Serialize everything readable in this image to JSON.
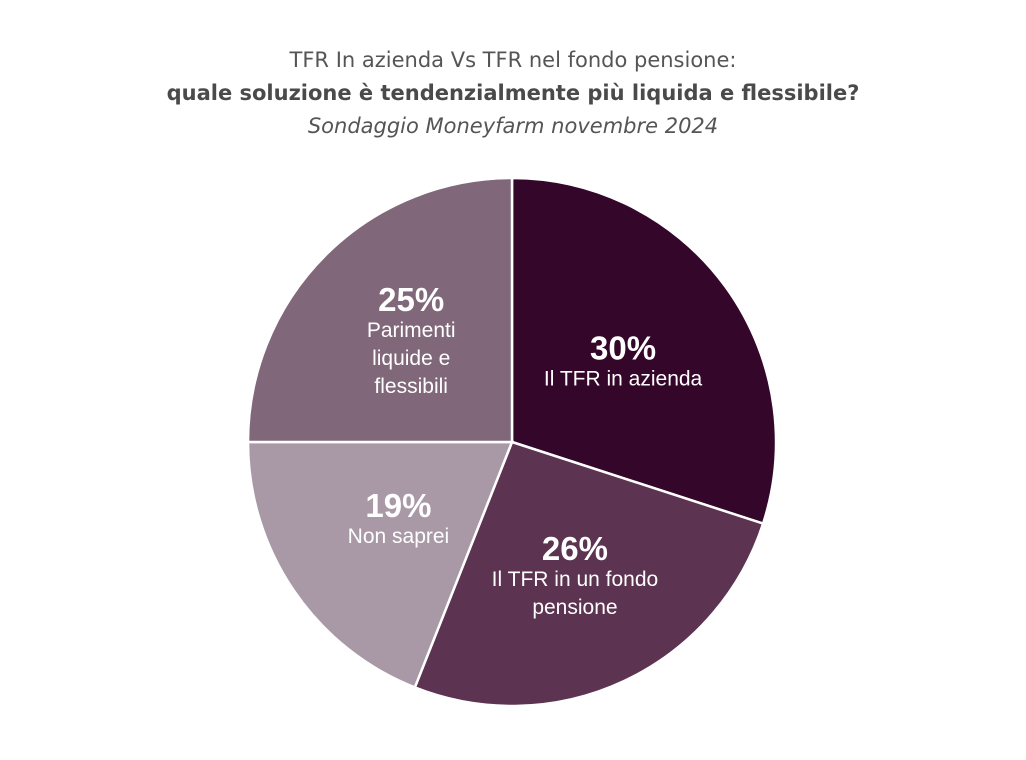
{
  "chart_data": {
    "type": "pie",
    "title": "TFR In azienda Vs TFR nel fondo pensione:",
    "subtitle": "quale soluzione è tendenzialmente più liquida e flessibile?",
    "caption": "Sondaggio Moneyfarm novembre 2024",
    "slices": [
      {
        "value_label": "30%",
        "value": 30,
        "label_lines": [
          "Il TFR in azienda"
        ],
        "color": "#33062A"
      },
      {
        "value_label": "26%",
        "value": 26,
        "label_lines": [
          "Il TFR in un fondo",
          "pensione"
        ],
        "color": "#5C3350"
      },
      {
        "value_label": "19%",
        "value": 19,
        "label_lines": [
          "Non saprei"
        ],
        "color": "#A999A6"
      },
      {
        "value_label": "25%",
        "value": 25,
        "label_lines": [
          "Parimenti",
          "liquide e",
          "flessibili"
        ],
        "color": "#80677A"
      }
    ]
  }
}
